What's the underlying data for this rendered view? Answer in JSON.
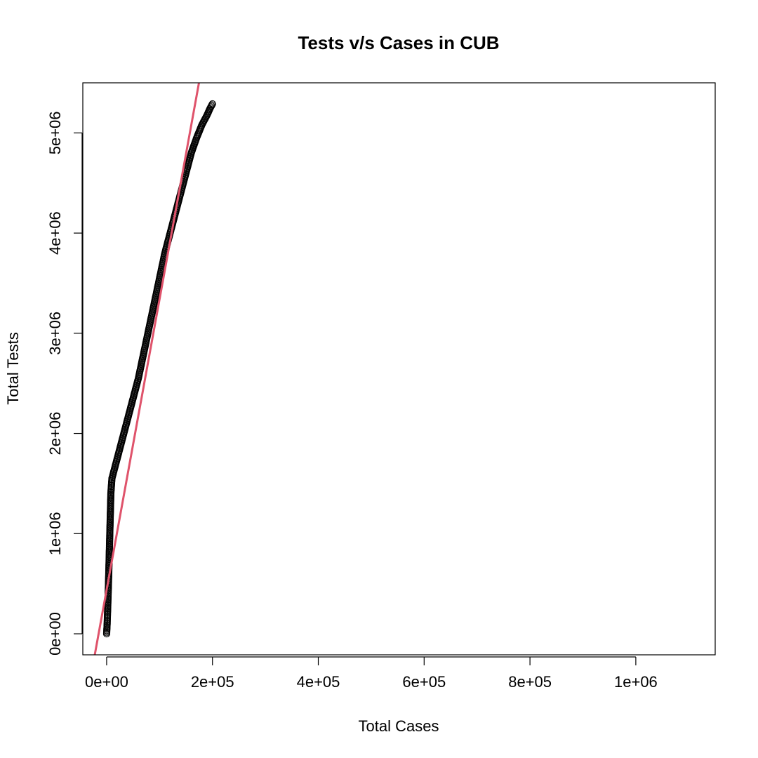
{
  "chart_data": {
    "type": "scatter",
    "title": "Tests v/s Cases in CUB",
    "xlabel": "Total Cases",
    "ylabel": "Total Tests",
    "xlim": [
      -45000,
      1150000
    ],
    "ylim": [
      -210000,
      5500000
    ],
    "x_ticks": [
      0,
      200000,
      400000,
      600000,
      800000,
      1000000
    ],
    "x_tick_labels": [
      "0e+00",
      "2e+05",
      "4e+05",
      "6e+05",
      "8e+05",
      "1e+06"
    ],
    "y_ticks": [
      0,
      1000000,
      2000000,
      3000000,
      4000000,
      5000000
    ],
    "y_tick_labels": [
      "0e+00",
      "1e+06",
      "2e+06",
      "3e+06",
      "4e+06",
      "5e+06"
    ],
    "grid": false,
    "point_color": "#000000",
    "fit_color": "#DF536B",
    "series": [
      {
        "kind": "points",
        "anchors": [
          [
            0,
            0
          ],
          [
            1000,
            100000
          ],
          [
            2000,
            250000
          ],
          [
            3000,
            420000
          ],
          [
            4000,
            600000
          ],
          [
            5000,
            800000
          ],
          [
            6000,
            1000000
          ],
          [
            7000,
            1200000
          ],
          [
            8000,
            1400000
          ],
          [
            10000,
            1550000
          ],
          [
            15000,
            1650000
          ],
          [
            20000,
            1750000
          ],
          [
            30000,
            1950000
          ],
          [
            40000,
            2150000
          ],
          [
            50000,
            2350000
          ],
          [
            60000,
            2550000
          ],
          [
            70000,
            2800000
          ],
          [
            80000,
            3050000
          ],
          [
            90000,
            3300000
          ],
          [
            100000,
            3550000
          ],
          [
            110000,
            3800000
          ],
          [
            120000,
            4000000
          ],
          [
            130000,
            4200000
          ],
          [
            140000,
            4400000
          ],
          [
            150000,
            4600000
          ],
          [
            160000,
            4800000
          ],
          [
            170000,
            4950000
          ],
          [
            180000,
            5080000
          ],
          [
            190000,
            5180000
          ],
          [
            195000,
            5240000
          ],
          [
            200000,
            5290000
          ]
        ]
      },
      {
        "kind": "line",
        "intercept": 440000,
        "slope": 29.0
      }
    ]
  }
}
